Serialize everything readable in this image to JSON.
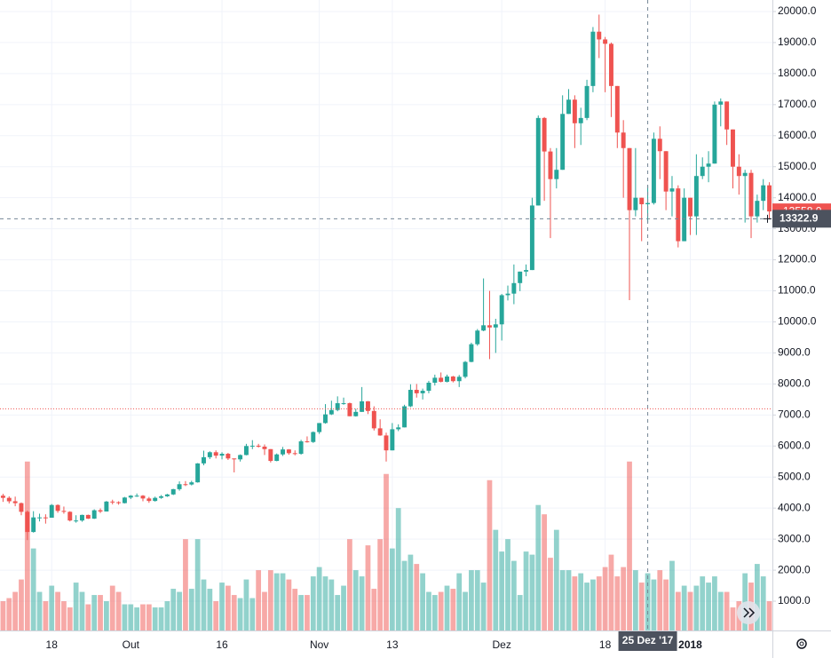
{
  "chart_data": {
    "type": "candlestick",
    "categories": [
      null,
      null,
      null,
      null,
      null,
      null,
      null,
      null,
      "18",
      null,
      null,
      null,
      null,
      null,
      null,
      null,
      null,
      null,
      null,
      null,
      null,
      "Out",
      null,
      null,
      null,
      null,
      null,
      null,
      null,
      null,
      null,
      null,
      null,
      null,
      null,
      null,
      "16",
      null,
      null,
      null,
      null,
      null,
      null,
      null,
      null,
      null,
      null,
      null,
      null,
      null,
      null,
      null,
      "Nov",
      null,
      null,
      null,
      null,
      null,
      null,
      null,
      null,
      null,
      null,
      null,
      "13",
      null,
      null,
      null,
      null,
      null,
      null,
      null,
      null,
      null,
      null,
      null,
      null,
      null,
      null,
      null,
      null,
      null,
      "Dez",
      null,
      null,
      null,
      null,
      null,
      null,
      null,
      null,
      null,
      null,
      null,
      null,
      null,
      null,
      null,
      null,
      "18",
      null,
      null,
      null,
      null,
      null,
      null,
      null,
      null,
      null,
      null,
      null,
      null,
      null,
      "2018",
      null,
      null,
      null,
      null,
      null,
      null,
      null,
      null,
      null,
      null,
      null,
      null,
      null
    ],
    "open": [
      4400,
      4330,
      4220,
      4160,
      3880,
      3230,
      3700,
      3700,
      3690,
      4100,
      3910,
      3880,
      3600,
      3600,
      3780,
      3660,
      3930,
      3890,
      4210,
      4190,
      4160,
      4340,
      4400,
      4400,
      4310,
      4230,
      4330,
      4380,
      4440,
      4610,
      4770,
      4760,
      4830,
      5440,
      5640,
      5800,
      5690,
      5750,
      5600,
      5570,
      5710,
      6000,
      6010,
      5980,
      5900,
      5520,
      5730,
      5890,
      5770,
      5750,
      6150,
      6130,
      6450,
      6740,
      7020,
      7160,
      7380,
      7380,
      6960,
      7100,
      7440,
      7130,
      6570,
      6340,
      5860,
      6540,
      6600,
      7280,
      7810,
      7700,
      7780,
      8040,
      8200,
      8070,
      8240,
      8090,
      8230,
      8710,
      9280,
      9720,
      9890,
      9820,
      9920,
      10860,
      10910,
      11250,
      11620,
      11670,
      13750,
      16570,
      15490,
      14600,
      14900,
      16700,
      17160,
      16400,
      16570,
      17600,
      19350,
      19100,
      18960,
      17600,
      16100,
      15600,
      13600,
      14000,
      13790,
      13830,
      15900,
      15500,
      14200,
      14300,
      12600,
      14000,
      13400,
      14700,
      15000,
      15100,
      17000,
      17100,
      16200,
      15000,
      14700,
      14800,
      13400,
      13900,
      14400
    ],
    "high": [
      4460,
      4380,
      4370,
      4180,
      3920,
      3900,
      3820,
      3800,
      4130,
      4120,
      4050,
      3900,
      3770,
      3790,
      3790,
      3960,
      3990,
      4230,
      4270,
      4220,
      4360,
      4420,
      4470,
      4420,
      4360,
      4370,
      4420,
      4460,
      4620,
      4860,
      4870,
      4880,
      5450,
      5850,
      5830,
      5860,
      5800,
      5780,
      5600,
      5730,
      6070,
      6190,
      6070,
      6050,
      5900,
      5760,
      5970,
      5900,
      5860,
      6200,
      6310,
      6470,
      6740,
      7350,
      7460,
      7600,
      7560,
      7400,
      7200,
      7900,
      7450,
      7280,
      6860,
      6430,
      6740,
      6700,
      7330,
      7990,
      8000,
      7850,
      8100,
      8300,
      8370,
      8300,
      8260,
      8290,
      8740,
      9330,
      9770,
      11400,
      11000,
      10100,
      10900,
      11170,
      11850,
      11620,
      11850,
      14000,
      16650,
      16600,
      15600,
      15600,
      17300,
      17500,
      17300,
      16900,
      17800,
      19500,
      19900,
      19180,
      19000,
      17600,
      16500,
      15600,
      15600,
      14000,
      14400,
      16100,
      16300,
      15500,
      14700,
      14400,
      14300,
      14000,
      15400,
      15300,
      15500,
      17100,
      17200,
      17100,
      16200,
      15400,
      14900,
      14900,
      14100,
      14600,
      14500
    ],
    "low": [
      4200,
      4150,
      4060,
      3770,
      2970,
      3210,
      3570,
      3500,
      3690,
      3850,
      3820,
      3570,
      3530,
      3560,
      3650,
      3650,
      3840,
      3890,
      4120,
      4110,
      4150,
      4290,
      4360,
      4220,
      4170,
      4210,
      4300,
      4360,
      4420,
      4560,
      4710,
      4730,
      4820,
      5380,
      5580,
      5600,
      5570,
      5550,
      5150,
      5500,
      5700,
      5900,
      5950,
      5710,
      5470,
      5510,
      5680,
      5720,
      5700,
      5720,
      6110,
      6100,
      6390,
      6720,
      7000,
      7120,
      7330,
      6960,
      6950,
      7100,
      7030,
      6500,
      6330,
      5500,
      5860,
      6480,
      6600,
      7250,
      7560,
      7500,
      7700,
      7950,
      8050,
      8050,
      8050,
      7900,
      8180,
      8700,
      9230,
      9700,
      8800,
      9000,
      9400,
      10690,
      10570,
      10990,
      11470,
      11670,
      13750,
      13900,
      12700,
      14300,
      14900,
      16700,
      15600,
      15700,
      16500,
      17400,
      18500,
      17400,
      16600,
      15600,
      14000,
      10700,
      13400,
      12600,
      13200,
      13780,
      14600,
      13600,
      13400,
      12400,
      12600,
      12800,
      12800,
      14600,
      14500,
      15100,
      16300,
      15700,
      14300,
      14100,
      13200,
      12700,
      13200,
      13600,
      13300
    ],
    "close": [
      4330,
      4220,
      4160,
      3880,
      3230,
      3700,
      3700,
      3690,
      4100,
      3910,
      3880,
      3600,
      3600,
      3780,
      3660,
      3930,
      3890,
      4210,
      4190,
      4160,
      4340,
      4400,
      4400,
      4310,
      4230,
      4330,
      4380,
      4440,
      4610,
      4770,
      4760,
      4830,
      5440,
      5640,
      5800,
      5690,
      5750,
      5600,
      5570,
      5710,
      6000,
      6010,
      5980,
      5900,
      5520,
      5730,
      5890,
      5770,
      5750,
      6150,
      6130,
      6450,
      6740,
      7020,
      7160,
      7380,
      7380,
      6960,
      7100,
      7440,
      7130,
      6570,
      6340,
      5860,
      6540,
      6600,
      7280,
      7810,
      7700,
      7780,
      8040,
      8200,
      8070,
      8240,
      8090,
      8230,
      8710,
      9280,
      9720,
      9890,
      9820,
      9920,
      10860,
      10910,
      11250,
      11620,
      11670,
      13750,
      16570,
      15490,
      14600,
      14900,
      16700,
      17160,
      16400,
      16570,
      17600,
      19350,
      19100,
      18960,
      17600,
      16100,
      15600,
      13600,
      14000,
      13790,
      13830,
      15900,
      15500,
      14200,
      14300,
      12600,
      14000,
      13400,
      14700,
      15000,
      15100,
      17000,
      17100,
      16200,
      15000,
      14700,
      14800,
      13400,
      13900,
      14400,
      13558
    ],
    "volume": [
      1000,
      1100,
      1300,
      1700,
      5500,
      2700,
      1300,
      1000,
      1500,
      1300,
      1000,
      800,
      1600,
      1300,
      900,
      1200,
      1200,
      1000,
      1500,
      1300,
      900,
      900,
      800,
      900,
      900,
      800,
      800,
      1000,
      1400,
      1300,
      3000,
      1400,
      3000,
      1700,
      1400,
      1000,
      1600,
      1500,
      1200,
      1100,
      1700,
      1100,
      2000,
      1300,
      2000,
      1900,
      1900,
      1700,
      1400,
      1200,
      1200,
      1800,
      2100,
      1800,
      1700,
      1200,
      1500,
      3000,
      2000,
      1800,
      2800,
      1400,
      3000,
      5100,
      2700,
      4000,
      2300,
      2500,
      2200,
      1900,
      1300,
      1200,
      1300,
      1500,
      1400,
      1900,
      1300,
      2000,
      2000,
      1600,
      4900,
      3300,
      2600,
      3000,
      2300,
      1200,
      2600,
      2500,
      4100,
      3800,
      2400,
      3300,
      2000,
      2000,
      1800,
      1900,
      1600,
      1700,
      1800,
      2100,
      2500,
      1800,
      2100,
      5500,
      2000,
      1600,
      1900,
      1700,
      2000,
      1700,
      2300,
      1300,
      1500,
      1300,
      1500,
      1800,
      1600,
      1800,
      1300,
      1300,
      800,
      1000,
      1900,
      1600,
      2200,
      1800,
      1000
    ],
    "colors": {
      "up": "#26a69a",
      "down": "#ef5350"
    },
    "ylim": [
      57,
      20371
    ],
    "yticks": [
      {
        "value": 1000,
        "label": "1000.0"
      },
      {
        "value": 2000,
        "label": "2000.0"
      },
      {
        "value": 3000,
        "label": "3000.0"
      },
      {
        "value": 4000,
        "label": "4000.0"
      },
      {
        "value": 5000,
        "label": "5000.0"
      },
      {
        "value": 6000,
        "label": "6000.0"
      },
      {
        "value": 7000,
        "label": "7000.0"
      },
      {
        "value": 8000,
        "label": "8000.0"
      },
      {
        "value": 9000,
        "label": "9000.0"
      },
      {
        "value": 10000,
        "label": "10000.0"
      },
      {
        "value": 11000,
        "label": "11000.0"
      },
      {
        "value": 12000,
        "label": "12000.0"
      },
      {
        "value": 13000,
        "label": "13000.0"
      },
      {
        "value": 14000,
        "label": "14000.0"
      },
      {
        "value": 15000,
        "label": "15000.0"
      },
      {
        "value": 16000,
        "label": "16000.0"
      },
      {
        "value": 17000,
        "label": "17000.0"
      },
      {
        "value": 18000,
        "label": "18000.0"
      },
      {
        "value": 19000,
        "label": "19000.0"
      },
      {
        "value": 20000,
        "label": "20000.0"
      }
    ],
    "grid": true,
    "hline": {
      "value": 7200,
      "color": "#ef5350"
    },
    "last_price": {
      "value": 13558,
      "label": "13558.0"
    },
    "crosshair": {
      "index": 106,
      "x_label": "25 Dez '17",
      "y": {
        "value": 13322.9,
        "label": "13322.9"
      }
    }
  }
}
